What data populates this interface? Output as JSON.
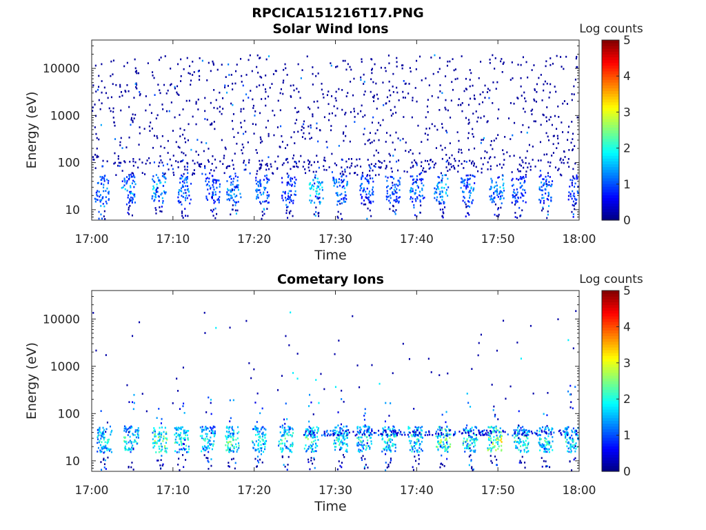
{
  "figure": {
    "title": "RPCICA151216T17.PNG"
  },
  "colors": {
    "axis": "#262626",
    "colormap": "jet"
  },
  "chart_data": [
    {
      "type": "heatmap",
      "title": "Solar Wind Ions",
      "xlabel": "Time",
      "ylabel": "Energy (eV)",
      "y_scale": "log",
      "xlim": [
        "17:00",
        "18:00"
      ],
      "ylim": [
        6,
        40000
      ],
      "x_ticks": [
        "17:00",
        "17:10",
        "17:20",
        "17:30",
        "17:40",
        "17:50",
        "18:00"
      ],
      "y_ticks": [
        10,
        100,
        1000,
        10000
      ],
      "y_tick_labels": [
        "10",
        "100",
        "1000",
        "10000"
      ],
      "colorbar": {
        "label": "Log counts",
        "range": [
          0,
          5
        ],
        "ticks": [
          "0",
          "1",
          "2",
          "3",
          "4",
          "5"
        ]
      },
      "grid": false,
      "bursts": [
        {
          "t": 1.2,
          "level": 1.6
        },
        {
          "t": 4.5,
          "level": 1.8
        },
        {
          "t": 8.2,
          "level": 2.0
        },
        {
          "t": 11.3,
          "level": 1.6
        },
        {
          "t": 14.8,
          "level": 1.4
        },
        {
          "t": 17.4,
          "level": 1.6
        },
        {
          "t": 21.0,
          "level": 1.7
        },
        {
          "t": 24.2,
          "level": 1.4
        },
        {
          "t": 27.6,
          "level": 2.2
        },
        {
          "t": 30.5,
          "level": 1.8
        },
        {
          "t": 33.8,
          "level": 1.5
        },
        {
          "t": 37.0,
          "level": 1.5
        },
        {
          "t": 40.0,
          "level": 1.6
        },
        {
          "t": 43.0,
          "level": 1.9
        },
        {
          "t": 46.2,
          "level": 1.6
        },
        {
          "t": 49.8,
          "level": 1.8
        },
        {
          "t": 52.5,
          "level": 1.4
        },
        {
          "t": 55.8,
          "level": 1.6
        },
        {
          "t": 59.5,
          "level": 1.3
        }
      ]
    },
    {
      "type": "heatmap",
      "title": "Cometary Ions",
      "xlabel": "Time",
      "ylabel": "Energy (eV)",
      "y_scale": "log",
      "xlim": [
        "17:00",
        "18:00"
      ],
      "ylim": [
        6,
        40000
      ],
      "x_ticks": [
        "17:00",
        "17:10",
        "17:20",
        "17:30",
        "17:40",
        "17:50",
        "18:00"
      ],
      "y_ticks": [
        10,
        100,
        1000,
        10000
      ],
      "y_tick_labels": [
        "10",
        "100",
        "1000",
        "10000"
      ],
      "colorbar": {
        "label": "Log counts",
        "range": [
          0,
          5
        ],
        "ticks": [
          "0",
          "1",
          "2",
          "3",
          "4",
          "5"
        ]
      },
      "grid": false,
      "bursts": [
        {
          "t": 1.5,
          "level": 2.3
        },
        {
          "t": 4.8,
          "level": 2.6
        },
        {
          "t": 8.3,
          "level": 2.9
        },
        {
          "t": 11.0,
          "level": 2.4
        },
        {
          "t": 14.2,
          "level": 2.3
        },
        {
          "t": 17.2,
          "level": 2.8
        },
        {
          "t": 20.5,
          "level": 2.4
        },
        {
          "t": 23.8,
          "level": 2.5
        },
        {
          "t": 27.0,
          "level": 2.7
        },
        {
          "t": 30.5,
          "level": 2.4
        },
        {
          "t": 33.5,
          "level": 2.5
        },
        {
          "t": 36.5,
          "level": 2.6
        },
        {
          "t": 39.8,
          "level": 2.6
        },
        {
          "t": 43.2,
          "level": 3.1
        },
        {
          "t": 46.5,
          "level": 2.5
        },
        {
          "t": 49.5,
          "level": 3.4
        },
        {
          "t": 52.8,
          "level": 2.6
        },
        {
          "t": 55.8,
          "level": 2.4
        },
        {
          "t": 59.0,
          "level": 2.4
        }
      ]
    }
  ]
}
